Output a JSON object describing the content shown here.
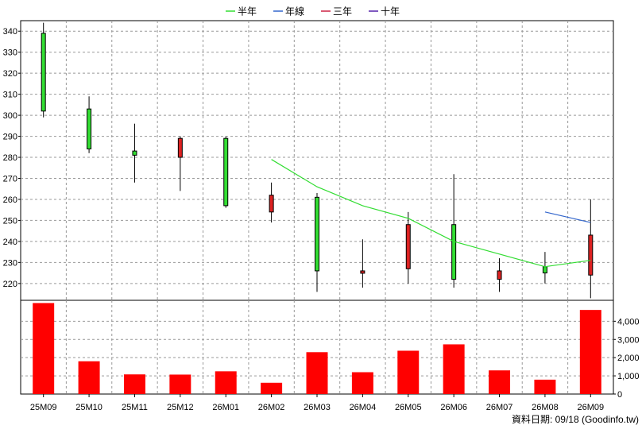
{
  "chart_data": {
    "type": "candlestick",
    "categories": [
      "25M09",
      "25M10",
      "25M11",
      "25M12",
      "26M01",
      "26M02",
      "26M03",
      "26M04",
      "26M05",
      "26M06",
      "26M07",
      "26M08",
      "26M09"
    ],
    "candles": [
      {
        "open": 302,
        "close": 339,
        "high": 344,
        "low": 299,
        "direction": "up"
      },
      {
        "open": 284,
        "close": 303,
        "high": 309,
        "low": 282,
        "direction": "up"
      },
      {
        "open": 281,
        "close": 283,
        "high": 296,
        "low": 268,
        "direction": "up"
      },
      {
        "open": 289,
        "close": 280,
        "high": 290,
        "low": 264,
        "direction": "down"
      },
      {
        "open": 257,
        "close": 289,
        "high": 290,
        "low": 256,
        "direction": "up"
      },
      {
        "open": 262,
        "close": 254,
        "high": 268,
        "low": 249,
        "direction": "down"
      },
      {
        "open": 226,
        "close": 261,
        "high": 263,
        "low": 216,
        "direction": "up"
      },
      {
        "open": 226,
        "close": 225,
        "high": 241,
        "low": 218,
        "direction": "down"
      },
      {
        "open": 248,
        "close": 227,
        "high": 254,
        "low": 220,
        "direction": "down"
      },
      {
        "open": 222,
        "close": 248,
        "high": 272,
        "low": 218,
        "direction": "up"
      },
      {
        "open": 226,
        "close": 222,
        "high": 232,
        "low": 216,
        "direction": "down"
      },
      {
        "open": 225,
        "close": 228,
        "high": 235,
        "low": 220,
        "direction": "up"
      },
      {
        "open": 243,
        "close": 224,
        "high": 260,
        "low": 213,
        "direction": "down"
      }
    ],
    "series": [
      {
        "name": "半年",
        "color": "#33dd33",
        "values": [
          null,
          null,
          null,
          null,
          null,
          279,
          266,
          257,
          251,
          240,
          234,
          228,
          231
        ]
      },
      {
        "name": "年線",
        "color": "#3366cc",
        "values": [
          null,
          null,
          null,
          null,
          null,
          null,
          null,
          null,
          null,
          null,
          null,
          254,
          249
        ]
      },
      {
        "name": "三年",
        "color": "#cc2244",
        "values": [
          null,
          null,
          null,
          null,
          null,
          null,
          null,
          null,
          null,
          null,
          null,
          null,
          null
        ]
      },
      {
        "name": "十年",
        "color": "#5522aa",
        "values": [
          null,
          null,
          null,
          null,
          null,
          null,
          null,
          null,
          null,
          null,
          null,
          null,
          null
        ]
      }
    ],
    "volume": [
      5000,
      1800,
      1080,
      1070,
      1250,
      620,
      2300,
      1200,
      2380,
      2730,
      1300,
      790,
      4620
    ],
    "price_ylim": [
      212,
      345
    ],
    "price_ticks": [
      220,
      230,
      240,
      250,
      260,
      270,
      280,
      290,
      300,
      310,
      320,
      330,
      340
    ],
    "volume_ylim": [
      0,
      5150
    ],
    "volume_ticks": [
      0,
      1000,
      2000,
      3000,
      4000
    ],
    "volume_tick_labels": [
      "0",
      "1,000",
      "2,000",
      "3,000",
      "4,000"
    ],
    "grid": true,
    "legend_position": "top-center",
    "footnote": "資料日期: 09/18 (Goodinfo.tw)",
    "colors": {
      "up_fill": "#33dd33",
      "down_fill": "#dd2222",
      "volume_bar": "#ff0000",
      "grid": "#999999",
      "axis": "#000000"
    }
  }
}
